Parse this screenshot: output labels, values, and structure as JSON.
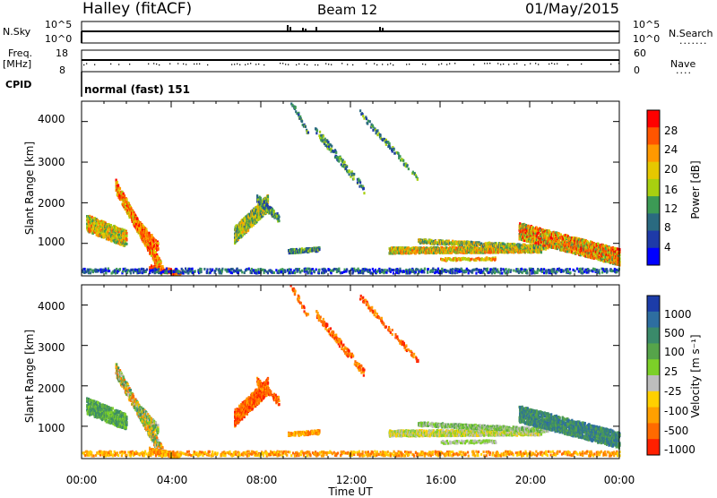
{
  "header": {
    "station": "Halley (fitACF)",
    "beam": "Beam 12",
    "date": "01/May/2015"
  },
  "top_panels": {
    "nsky_label": "N.Sky",
    "nsky_ticks": [
      "10^5",
      "10^0"
    ],
    "nsearch_label": "N.Search",
    "nsearch_ticks": [
      "10^5",
      "10^0"
    ],
    "freq_label": "Freq.",
    "freq_unit": "[MHz]",
    "freq_ticks": [
      "18",
      "8"
    ],
    "nave_label": "Nave",
    "nave_ticks": [
      "60",
      "0"
    ],
    "cpid_label": "CPID",
    "cpid_value": "normal (fast) 151"
  },
  "chart_data": [
    {
      "type": "heatmap",
      "name": "power",
      "ylabel": "Slant Range [km]",
      "y_ticks": [
        "4000",
        "3000",
        "2000",
        "1000"
      ],
      "ylim": [
        200,
        4500
      ],
      "colorbar_label": "Power [dB]",
      "colorbar_ticks": [
        "28",
        "24",
        "20",
        "16",
        "12",
        "8",
        "4"
      ],
      "colorbar_colors": [
        "#ff0000",
        "#ff5500",
        "#ff9900",
        "#e6c800",
        "#a8d010",
        "#3c9a55",
        "#2a6a80",
        "#1e3aa8",
        "#0000ff"
      ]
    },
    {
      "type": "heatmap",
      "name": "velocity",
      "ylabel": "Slant Range [km]",
      "y_ticks": [
        "4000",
        "3000",
        "2000",
        "1000"
      ],
      "ylim": [
        200,
        4500
      ],
      "xlabel": "Time UT",
      "x_ticks": [
        "00:00",
        "04:00",
        "08:00",
        "12:00",
        "16:00",
        "20:00",
        "00:00"
      ],
      "colorbar_label": "Velocity [m s⁻¹]",
      "colorbar_ticks": [
        "1000",
        "500",
        "100",
        "25",
        "-25",
        "-100",
        "-500",
        "-1000"
      ],
      "colorbar_colors": [
        "#1c3ca8",
        "#2e6ea0",
        "#3a8a6a",
        "#56a44a",
        "#7cd028",
        "#bdbdbd",
        "#ffd000",
        "#ffa000",
        "#ff6a00",
        "#ff2000"
      ]
    }
  ]
}
